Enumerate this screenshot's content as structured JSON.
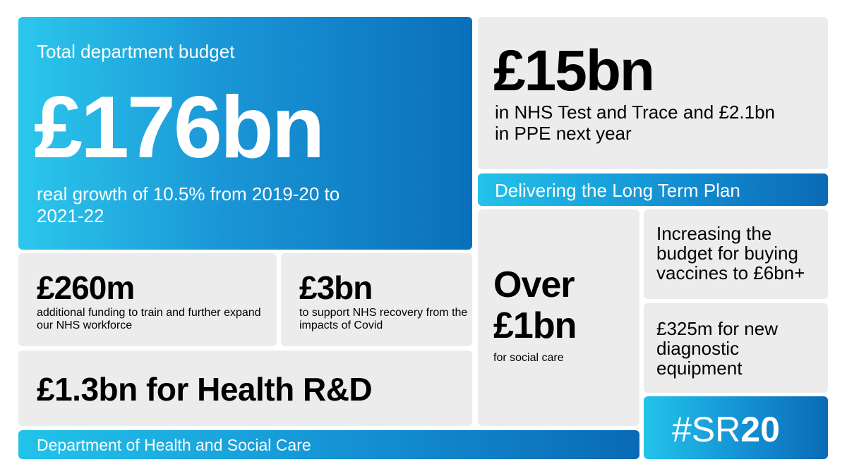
{
  "main": {
    "label": "Total department budget",
    "amount": "£176bn",
    "detail": "real growth of 10.5% from 2019-20 to 2021-22"
  },
  "test_trace": {
    "amount": "£15bn",
    "detail": "in NHS Test and Trace and £2.1bn in PPE next year"
  },
  "long_term_plan": {
    "label": "Delivering the Long Term Plan"
  },
  "workforce": {
    "amount": "£260m",
    "detail": "additional funding to train and further expand our NHS workforce"
  },
  "recovery": {
    "amount": "£3bn",
    "detail": "to support NHS recovery from the impacts of Covid"
  },
  "research": {
    "headline": "£1.3bn for Health R&D"
  },
  "department": {
    "label": "Department of Health and Social Care"
  },
  "social_care": {
    "amount": "Over £1bn",
    "detail": "for social care"
  },
  "vaccines": {
    "detail": "Increasing the budget for buying vaccines to £6bn+"
  },
  "diagnostics": {
    "detail": "£325m for new diagnostic equipment"
  },
  "hashtag": {
    "prefix": "#SR",
    "suffix": "20"
  },
  "colors": {
    "grey_tile": "#ececec",
    "blue_light": "#2cc7ec",
    "blue_dark": "#0a6fba"
  }
}
